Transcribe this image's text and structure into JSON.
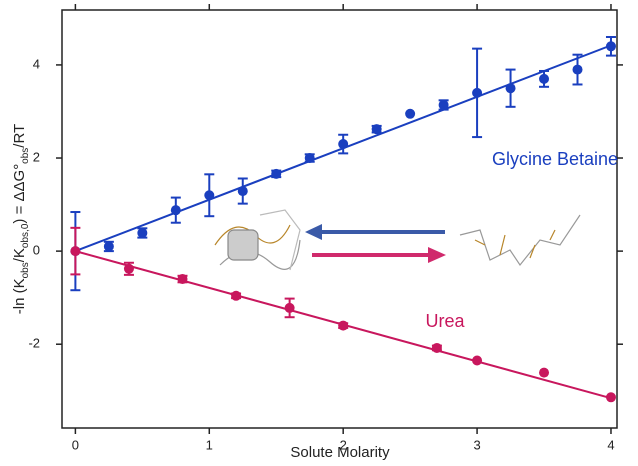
{
  "chart_data": {
    "type": "scatter",
    "x_label": "Solute Molarity",
    "y_label_parts": [
      "-ln (K",
      "obs",
      "/K",
      "obs,0",
      ") = ΔΔG°",
      "obs",
      "/RT"
    ],
    "xlim": [
      -0.1,
      4.045
    ],
    "ylim": [
      -3.8,
      5.18
    ],
    "xticks": [
      0,
      1,
      2,
      3,
      4
    ],
    "yticks": [
      -2,
      0,
      2,
      4
    ],
    "series": [
      {
        "name": "Glycine Betaine",
        "color": "#1a3fbf",
        "x": [
          0,
          0.25,
          0.5,
          0.75,
          1.0,
          1.25,
          1.5,
          1.75,
          2.0,
          2.25,
          2.5,
          2.75,
          3.0,
          3.25,
          3.5,
          3.75,
          4.0
        ],
        "values": [
          0,
          0.1,
          0.39,
          0.88,
          1.2,
          1.29,
          1.66,
          2.0,
          2.3,
          2.62,
          2.95,
          3.14,
          3.4,
          3.5,
          3.7,
          3.9,
          4.4
        ],
        "errors": [
          0.84,
          0.1,
          0.1,
          0.27,
          0.45,
          0.27,
          0.07,
          0.08,
          0.2,
          0.07,
          null,
          0.1,
          0.95,
          0.4,
          0.17,
          0.32,
          0.2
        ],
        "fit_x": [
          0,
          4
        ],
        "fit_values": [
          0,
          4.42
        ]
      },
      {
        "name": "Urea",
        "color": "#c8175d",
        "x": [
          0,
          0.4,
          0.8,
          1.2,
          1.6,
          2.0,
          2.7,
          3.0,
          3.5,
          4.0
        ],
        "values": [
          0,
          -0.38,
          -0.6,
          -0.96,
          -1.22,
          -1.6,
          -2.08,
          -2.35,
          -2.61,
          -3.14
        ],
        "errors": [
          0.5,
          0.13,
          0.07,
          0.05,
          0.2,
          0.05,
          0.05,
          null,
          null,
          null
        ],
        "fit_x": [
          0,
          4
        ],
        "fit_values": [
          0,
          -3.16
        ]
      }
    ]
  }
}
